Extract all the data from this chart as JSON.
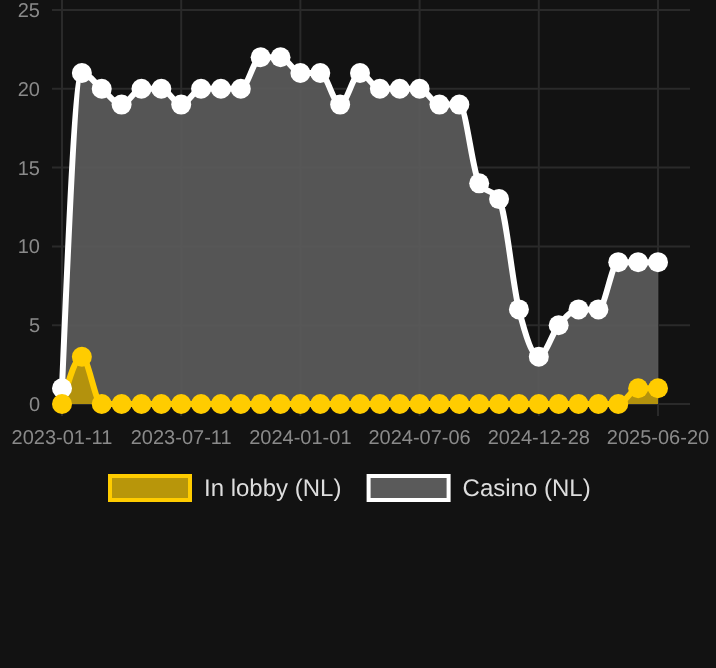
{
  "chart_data": {
    "type": "area",
    "categories": [
      "2023-01-11",
      null,
      null,
      null,
      null,
      null,
      "2023-07-11",
      null,
      null,
      null,
      null,
      null,
      "2024-01-01",
      null,
      null,
      null,
      null,
      null,
      "2024-07-06",
      null,
      null,
      null,
      null,
      null,
      "2024-12-28",
      null,
      null,
      null,
      null,
      null,
      "2025-06-20"
    ],
    "series": [
      {
        "name": "In lobby (NL)",
        "color": "#ffcc00",
        "values": [
          0,
          3,
          0,
          0,
          0,
          0,
          0,
          0,
          0,
          0,
          0,
          0,
          0,
          0,
          0,
          0,
          0,
          0,
          0,
          0,
          0,
          0,
          0,
          0,
          0,
          0,
          0,
          0,
          0,
          1,
          1
        ]
      },
      {
        "name": "Casino (NL)",
        "color": "#ffffff",
        "values": [
          1,
          21,
          20,
          19,
          20,
          20,
          19,
          20,
          20,
          20,
          22,
          22,
          21,
          21,
          19,
          21,
          20,
          20,
          20,
          19,
          19,
          14,
          13,
          6,
          3,
          5,
          6,
          6,
          9,
          9,
          9
        ]
      }
    ],
    "ylim": [
      0,
      25
    ],
    "yticks": [
      0,
      5,
      10,
      15,
      20,
      25
    ],
    "grid": true,
    "legend": "bottom",
    "marker": "circle"
  }
}
